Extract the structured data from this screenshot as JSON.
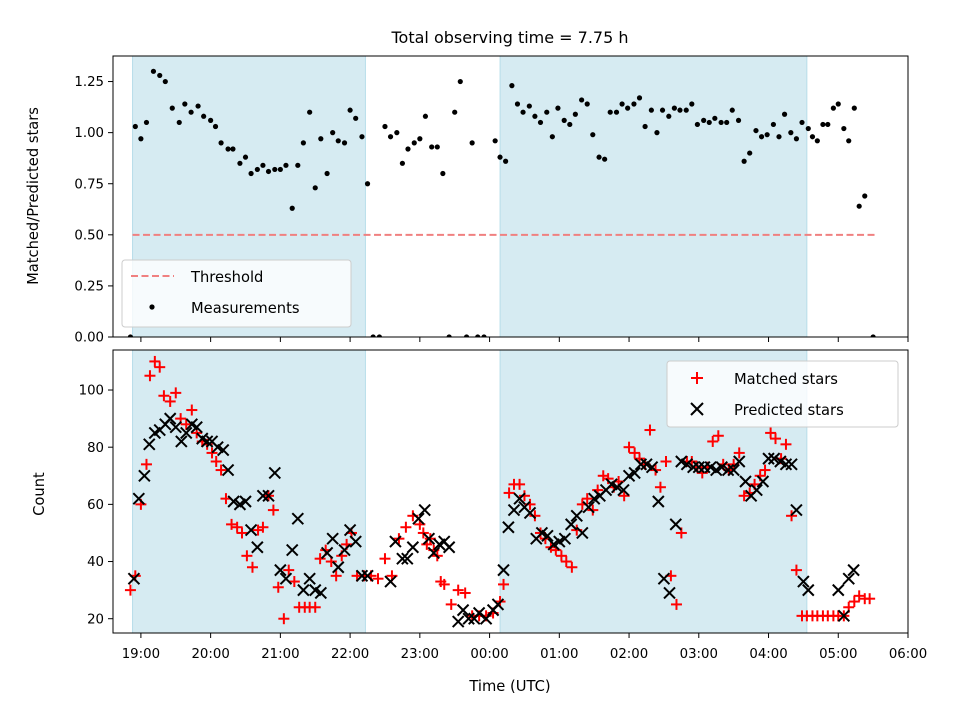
{
  "chart_data": [
    {
      "type": "scatter",
      "title": "Total observing time = 7.75 h",
      "xlabel": "",
      "ylabel": "Matched/Predicted stars",
      "ylim": [
        0,
        1.375
      ],
      "yticks": [
        "0.00",
        "0.25",
        "0.50",
        "0.75",
        "1.00",
        "1.25"
      ],
      "ytick_values": [
        0,
        0.25,
        0.5,
        0.75,
        1.0,
        1.25
      ],
      "x_unit": "hours since 18:00 UTC",
      "xlim": [
        0.6,
        12.0
      ],
      "grid": false,
      "legend_position": "lower-left",
      "legend": [
        {
          "label": "Threshold",
          "style": "dashed-line",
          "color": "#f08080"
        },
        {
          "label": "Measurements",
          "style": "dot",
          "color": "#000000"
        }
      ],
      "shaded_spans": [
        [
          0.88,
          4.22
        ],
        [
          6.15,
          10.55
        ]
      ],
      "shade_color": "#add8e6",
      "threshold": {
        "y": 0.5,
        "x_range": [
          0.88,
          11.55
        ],
        "color": "#f08080"
      },
      "series": [
        {
          "name": "Measurements",
          "color": "#000000",
          "x": [
            0.85,
            0.92,
            1.0,
            1.08,
            1.18,
            1.27,
            1.35,
            1.45,
            1.55,
            1.63,
            1.72,
            1.82,
            1.9,
            2.0,
            2.07,
            2.15,
            2.25,
            2.32,
            2.42,
            2.5,
            2.58,
            2.67,
            2.75,
            2.83,
            2.92,
            3.0,
            3.08,
            3.17,
            3.25,
            3.33,
            3.42,
            3.5,
            3.58,
            3.67,
            3.75,
            3.83,
            3.92,
            4.0,
            4.08,
            4.17,
            4.25,
            4.33,
            4.42,
            4.5,
            4.58,
            4.67,
            4.75,
            4.83,
            4.92,
            5.0,
            5.08,
            5.17,
            5.25,
            5.33,
            5.42,
            5.5,
            5.58,
            5.67,
            5.75,
            5.83,
            5.92,
            6.08,
            6.15,
            6.23,
            6.32,
            6.4,
            6.48,
            6.57,
            6.65,
            6.73,
            6.82,
            6.9,
            6.98,
            7.07,
            7.15,
            7.23,
            7.32,
            7.4,
            7.48,
            7.57,
            7.65,
            7.73,
            7.82,
            7.9,
            7.98,
            8.07,
            8.15,
            8.23,
            8.32,
            8.4,
            8.48,
            8.57,
            8.65,
            8.73,
            8.82,
            8.9,
            8.98,
            9.07,
            9.15,
            9.23,
            9.32,
            9.4,
            9.48,
            9.57,
            9.65,
            9.73,
            9.82,
            9.9,
            9.98,
            10.07,
            10.15,
            10.23,
            10.32,
            10.4,
            10.48,
            10.57,
            10.63,
            10.7,
            10.78,
            10.85,
            10.93,
            11.0,
            11.08,
            11.15,
            11.23,
            11.3,
            11.38,
            11.5
          ],
          "y": [
            0.0,
            1.03,
            0.97,
            1.05,
            1.3,
            1.28,
            1.25,
            1.12,
            1.05,
            1.14,
            1.1,
            1.13,
            1.08,
            1.06,
            1.03,
            0.95,
            0.92,
            0.92,
            0.85,
            0.88,
            0.8,
            0.82,
            0.84,
            0.81,
            0.82,
            0.82,
            0.84,
            0.63,
            0.84,
            0.95,
            1.1,
            0.73,
            0.97,
            0.8,
            1.0,
            0.96,
            0.95,
            1.11,
            1.07,
            0.98,
            0.75,
            0.0,
            0.0,
            1.03,
            0.98,
            1.0,
            0.85,
            0.92,
            0.95,
            0.97,
            1.08,
            0.93,
            0.93,
            0.8,
            0.0,
            1.1,
            1.25,
            0.0,
            0.95,
            0.0,
            0.0,
            0.96,
            0.88,
            0.86,
            1.23,
            1.14,
            1.1,
            1.13,
            1.08,
            1.05,
            1.1,
            0.98,
            1.12,
            1.06,
            1.04,
            1.09,
            1.16,
            1.14,
            0.99,
            0.88,
            0.87,
            1.1,
            1.1,
            1.14,
            1.12,
            1.14,
            1.17,
            1.03,
            1.11,
            1.0,
            1.11,
            1.08,
            1.12,
            1.11,
            1.11,
            1.14,
            1.04,
            1.06,
            1.05,
            1.07,
            1.05,
            1.05,
            1.11,
            1.06,
            0.86,
            0.9,
            1.01,
            0.98,
            0.99,
            1.04,
            0.98,
            1.09,
            1.0,
            0.97,
            1.05,
            1.02,
            0.98,
            0.96,
            1.04,
            1.04,
            1.12,
            1.14,
            1.02,
            0.96,
            1.12,
            0.64,
            0.69,
            0.0
          ]
        }
      ]
    },
    {
      "type": "scatter",
      "title": "",
      "xlabel": "Time (UTC)",
      "ylabel": "Count",
      "ylim": [
        15,
        114
      ],
      "yticks": [
        "20",
        "40",
        "60",
        "80",
        "100"
      ],
      "ytick_values": [
        20,
        40,
        60,
        80,
        100
      ],
      "x_unit": "hours since 18:00 UTC",
      "xlim": [
        0.6,
        12.0
      ],
      "xticks": [
        "19:00",
        "20:00",
        "21:00",
        "22:00",
        "23:00",
        "00:00",
        "01:00",
        "02:00",
        "03:00",
        "04:00",
        "05:00",
        "06:00"
      ],
      "xtick_values": [
        1,
        2,
        3,
        4,
        5,
        6,
        7,
        8,
        9,
        10,
        11,
        12
      ],
      "grid": false,
      "legend_position": "top-right",
      "legend": [
        {
          "label": "Matched stars",
          "style": "plus",
          "color": "#ff0000"
        },
        {
          "label": "Predicted stars",
          "style": "x",
          "color": "#000000"
        }
      ],
      "shaded_spans": [
        [
          0.88,
          4.22
        ],
        [
          6.15,
          10.55
        ]
      ],
      "shade_color": "#add8e6",
      "series": [
        {
          "name": "Matched stars",
          "color": "#ff0000",
          "x": [
            0.85,
            0.92,
            1.0,
            1.08,
            1.13,
            1.2,
            1.27,
            1.33,
            1.42,
            1.5,
            1.57,
            1.65,
            1.73,
            1.8,
            1.88,
            1.95,
            2.02,
            2.08,
            2.15,
            2.22,
            2.3,
            2.38,
            2.45,
            2.52,
            2.6,
            2.68,
            2.75,
            2.83,
            2.9,
            2.97,
            3.05,
            3.12,
            3.2,
            3.27,
            3.35,
            3.42,
            3.5,
            3.57,
            3.65,
            3.73,
            3.8,
            3.88,
            3.95,
            4.02,
            4.1,
            4.2,
            4.3,
            4.4,
            4.5,
            4.6,
            4.7,
            4.8,
            4.9,
            5.0,
            5.05,
            5.1,
            5.15,
            5.2,
            5.25,
            5.3,
            5.35,
            5.45,
            5.55,
            5.65,
            5.75,
            5.85,
            5.95,
            6.05,
            6.15,
            6.2,
            6.28,
            6.35,
            6.43,
            6.5,
            6.58,
            6.65,
            6.73,
            6.8,
            6.88,
            6.95,
            7.03,
            7.1,
            7.18,
            7.25,
            7.33,
            7.4,
            7.48,
            7.55,
            7.63,
            7.7,
            7.78,
            7.85,
            7.93,
            8.0,
            8.08,
            8.15,
            8.23,
            8.3,
            8.38,
            8.45,
            8.53,
            8.6,
            8.68,
            8.75,
            8.83,
            8.9,
            8.98,
            9.05,
            9.13,
            9.2,
            9.28,
            9.35,
            9.43,
            9.5,
            9.58,
            9.65,
            9.73,
            9.8,
            9.88,
            9.95,
            10.03,
            10.1,
            10.18,
            10.25,
            10.33,
            10.4,
            10.48,
            10.55,
            10.63,
            10.7,
            10.78,
            10.85,
            10.93,
            11.0,
            11.08,
            11.15,
            11.23,
            11.3,
            11.38,
            11.45
          ],
          "y": [
            30,
            35,
            60,
            74,
            105,
            110,
            108,
            98,
            96,
            99,
            90,
            88,
            93,
            85,
            82,
            81,
            78,
            75,
            72,
            62,
            53,
            52,
            50,
            42,
            38,
            51,
            52,
            63,
            58,
            31,
            20,
            37,
            33,
            24,
            24,
            24,
            24,
            41,
            44,
            40,
            35,
            42,
            46,
            50,
            35,
            35,
            35,
            34,
            41,
            35,
            48,
            52,
            56,
            53,
            50,
            46,
            48,
            44,
            42,
            33,
            32,
            25,
            30,
            29,
            21,
            21,
            21,
            22,
            26,
            32,
            64,
            67,
            67,
            63,
            60,
            56,
            50,
            48,
            45,
            44,
            42,
            40,
            38,
            51,
            60,
            62,
            58,
            65,
            70,
            69,
            66,
            68,
            63,
            80,
            78,
            76,
            74,
            86,
            72,
            66,
            75,
            35,
            25,
            50,
            75,
            75,
            73,
            71,
            73,
            82,
            84,
            74,
            72,
            74,
            78,
            63,
            64,
            67,
            70,
            72,
            85,
            83,
            76,
            81,
            56,
            37,
            21,
            21,
            21,
            21,
            21,
            21,
            21,
            21,
            21,
            24,
            26,
            28,
            27,
            27
          ]
        },
        {
          "name": "Predicted stars",
          "color": "#000000",
          "x": [
            0.9,
            0.97,
            1.05,
            1.12,
            1.2,
            1.27,
            1.35,
            1.42,
            1.5,
            1.58,
            1.65,
            1.73,
            1.8,
            1.88,
            1.95,
            2.02,
            2.1,
            2.18,
            2.25,
            2.33,
            2.42,
            2.5,
            2.58,
            2.67,
            2.75,
            2.83,
            2.92,
            3.0,
            3.08,
            3.17,
            3.25,
            3.33,
            3.42,
            3.5,
            3.58,
            3.67,
            3.75,
            3.83,
            3.92,
            4.0,
            4.08,
            4.17,
            4.25,
            4.58,
            4.65,
            4.75,
            4.82,
            4.9,
            4.98,
            5.07,
            5.13,
            5.2,
            5.28,
            5.35,
            5.42,
            5.55,
            5.62,
            5.7,
            5.78,
            5.85,
            5.95,
            6.05,
            6.12,
            6.2,
            6.27,
            6.35,
            6.43,
            6.5,
            6.58,
            6.67,
            6.75,
            6.83,
            6.92,
            7.0,
            7.08,
            7.17,
            7.25,
            7.33,
            7.42,
            7.5,
            7.58,
            7.67,
            7.75,
            7.83,
            7.92,
            8.0,
            8.08,
            8.17,
            8.25,
            8.33,
            8.42,
            8.5,
            8.58,
            8.67,
            8.75,
            8.83,
            8.92,
            9.0,
            9.08,
            9.17,
            9.25,
            9.33,
            9.42,
            9.5,
            9.58,
            9.67,
            9.75,
            9.83,
            9.92,
            10.0,
            10.08,
            10.17,
            10.25,
            10.33,
            10.4,
            10.5,
            10.57,
            11.0,
            11.08,
            11.15,
            11.22
          ],
          "y": [
            34,
            62,
            70,
            81,
            85,
            86,
            88,
            90,
            87,
            82,
            85,
            88,
            87,
            83,
            82,
            82,
            80,
            79,
            72,
            61,
            60,
            61,
            51,
            45,
            63,
            63,
            71,
            37,
            34,
            44,
            55,
            30,
            34,
            30,
            29,
            43,
            48,
            38,
            44,
            51,
            47,
            35,
            35,
            33,
            47,
            41,
            41,
            45,
            55,
            58,
            48,
            43,
            46,
            47,
            45,
            19,
            23,
            20,
            20,
            22,
            20,
            23,
            25,
            37,
            52,
            58,
            62,
            59,
            57,
            48,
            50,
            49,
            46,
            47,
            48,
            53,
            56,
            50,
            59,
            62,
            63,
            65,
            67,
            66,
            65,
            70,
            71,
            74,
            74,
            73,
            61,
            34,
            29,
            53,
            75,
            74,
            73,
            73,
            73,
            73,
            72,
            73,
            72,
            72,
            75,
            68,
            63,
            65,
            68,
            76,
            76,
            75,
            74,
            74,
            58,
            33,
            30,
            30,
            21,
            34,
            37
          ]
        }
      ]
    }
  ]
}
